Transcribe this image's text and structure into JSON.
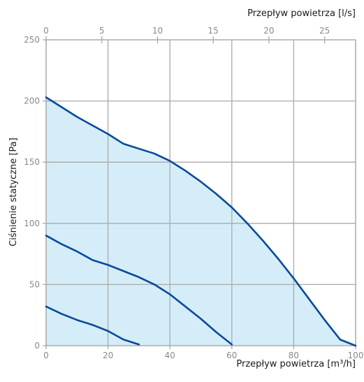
{
  "chart_data": {
    "type": "line",
    "x_bottom": {
      "label": "Przepływ powietrza [m³/h]",
      "range": [
        0,
        100
      ],
      "ticks": [
        0,
        20,
        40,
        60,
        80,
        100
      ]
    },
    "x_top": {
      "label": "Przepływ powietrza [l/s]",
      "range": [
        0,
        27.78
      ],
      "ticks": [
        0,
        5,
        10,
        15,
        20,
        25
      ]
    },
    "y": {
      "label": "Ciśnienie statyczne [Pa]",
      "range": [
        0,
        250
      ],
      "ticks": [
        0,
        50,
        100,
        150,
        200,
        250
      ]
    },
    "grid": true,
    "series": [
      {
        "points": [
          [
            0,
            203
          ],
          [
            5,
            195
          ],
          [
            10,
            187
          ],
          [
            15,
            180
          ],
          [
            20,
            173
          ],
          [
            25,
            165
          ],
          [
            30,
            161
          ],
          [
            35,
            157
          ],
          [
            40,
            151
          ],
          [
            45,
            143
          ],
          [
            50,
            134
          ],
          [
            55,
            124
          ],
          [
            60,
            113
          ],
          [
            65,
            100
          ],
          [
            70,
            86
          ],
          [
            75,
            71
          ],
          [
            80,
            55
          ],
          [
            85,
            38
          ],
          [
            90,
            21
          ],
          [
            95,
            5
          ],
          [
            100,
            0
          ]
        ],
        "fill": true
      },
      {
        "points": [
          [
            0,
            90
          ],
          [
            5,
            83
          ],
          [
            10,
            77
          ],
          [
            15,
            70
          ],
          [
            20,
            66
          ],
          [
            25,
            61
          ],
          [
            30,
            56
          ],
          [
            35,
            50
          ],
          [
            40,
            42
          ],
          [
            45,
            32
          ],
          [
            50,
            22
          ],
          [
            55,
            11
          ],
          [
            60,
            1
          ]
        ]
      },
      {
        "points": [
          [
            0,
            32
          ],
          [
            5,
            26
          ],
          [
            10,
            21
          ],
          [
            15,
            17
          ],
          [
            20,
            12
          ],
          [
            25,
            5
          ],
          [
            30,
            1
          ]
        ]
      }
    ],
    "colors": {
      "line": "#0a4a9a",
      "fill": "#d4edf9",
      "grid": "#aaaaaa",
      "tick_text": "#8a8a8a",
      "title_text": "#1a1a1a"
    }
  }
}
